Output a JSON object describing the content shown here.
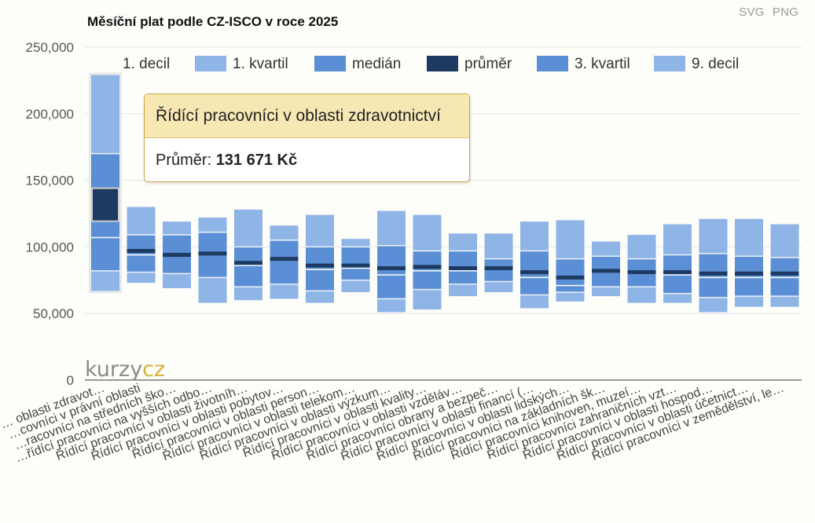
{
  "export": {
    "svg_label": "SVG",
    "png_label": "PNG"
  },
  "watermark": {
    "part1": "kurzy",
    "part2": "cz"
  },
  "tooltip": {
    "title": "Řídící pracovníci v oblasti zdravotnictví",
    "label": "Průměr:",
    "value": "131 671 Kč"
  },
  "colors": {
    "decil": "#8fb4e6",
    "kvartil": "#5b8fd5",
    "median_line": "#ffffff",
    "prumer": "#1d3a62",
    "highlight": "#e8e8e8",
    "axis_text": "#555555",
    "grid": "#e4e4e4"
  },
  "chart_data": {
    "type": "bar",
    "subtype": "box-range (decile/quartile)",
    "title": "Měsíční plat podle CZ-ISCO v roce 2025",
    "ylim": [
      0,
      250000
    ],
    "yticks": [
      0,
      50000,
      100000,
      150000,
      200000,
      250000
    ],
    "ytick_labels": [
      "0",
      "50,000",
      "100,000",
      "150,000",
      "200,000",
      "250,000"
    ],
    "grid": true,
    "legend_position": "top",
    "legend": [
      "1. decil",
      "1. kvartil",
      "medián",
      "průměr",
      "3. kvartil",
      "9. decil"
    ],
    "highlighted_index": 0,
    "categories": [
      "… oblasti zdravot…",
      "…covníci v právní oblasti",
      "…racovníci na středních ško…",
      "…řídící pracovníci na vyšších odbo…",
      "Řídící pracovníci v oblasti životníh…",
      "Řídící pracovníci v oblasti pobytov…",
      "Řídící pracovníci v oblasti person…",
      "Řídící pracovníci v oblasti telekom…",
      "Řídící pracovníci v oblasti výzkum…",
      "Řídící pracovníci v oblasti kvality…",
      "Řídící pracovníci v oblasti vzděláv…",
      "Řídící pracovníci obrany a bezpeč…",
      "Řídící pracovníci v oblasti financí (…",
      "Řídící pracovníci v oblasti lidských…",
      "Řídící pracovníci na základních šk…",
      "Řídící pracovníci knihoven, muzeí…",
      "Řídící pracovníci zahraničních vzt…",
      "Řídící pracovníci v oblasti hospod…",
      "Řídící pracovníci v oblasti účetnict…",
      "Řídící pracovníci v zemědělství, le…"
    ],
    "series": [
      {
        "name": "1. decil",
        "values": [
          67000,
          73000,
          69000,
          58000,
          60000,
          61000,
          58000,
          66000,
          51000,
          53000,
          63000,
          66000,
          54000,
          59000,
          63000,
          58000,
          58000,
          51000,
          55000,
          55000
        ]
      },
      {
        "name": "1. kvartil",
        "values": [
          82000,
          81000,
          80000,
          77000,
          70000,
          72000,
          67000,
          75000,
          61000,
          68000,
          72000,
          74000,
          64000,
          66000,
          70000,
          70000,
          65000,
          62000,
          63000,
          63000
        ]
      },
      {
        "name": "medián",
        "values": [
          107000,
          94000,
          94000,
          95000,
          86000,
          91000,
          83000,
          84000,
          79000,
          82000,
          82000,
          83000,
          77000,
          71000,
          81000,
          80000,
          79000,
          77000,
          77000,
          77000
        ]
      },
      {
        "name": "průměr",
        "values": [
          131671,
          97000,
          94000,
          95000,
          88000,
          91000,
          86000,
          86000,
          84000,
          85000,
          84000,
          84000,
          81000,
          77000,
          82000,
          81000,
          81000,
          80000,
          80000,
          80000
        ]
      },
      {
        "name": "3. kvartil",
        "values": [
          170000,
          109000,
          109000,
          111000,
          100000,
          105000,
          100000,
          100000,
          101000,
          97000,
          97000,
          91000,
          97000,
          91000,
          93000,
          91000,
          94000,
          95000,
          93000,
          92000
        ]
      },
      {
        "name": "9. decil",
        "values": [
          229000,
          130000,
          119000,
          122000,
          128000,
          116000,
          124000,
          106000,
          127000,
          124000,
          110000,
          110000,
          119000,
          120000,
          104000,
          109000,
          117000,
          121000,
          121000,
          117000
        ]
      }
    ]
  }
}
